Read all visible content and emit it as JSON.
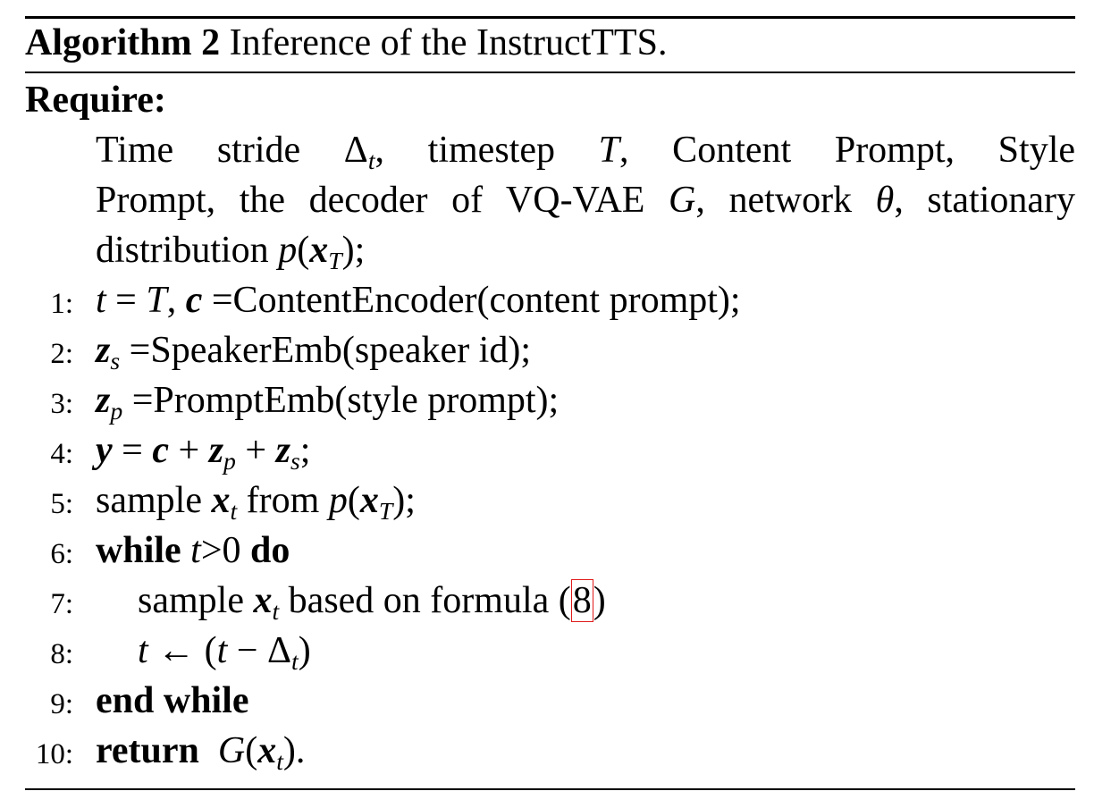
{
  "algorithm": {
    "label": "Algorithm 2",
    "caption": "Inference of the InstructTTS.",
    "require_label": "Require:",
    "require_lines": [
      [
        "Time",
        "stride",
        "Δ",
        "t",
        ",",
        "timestep",
        "T",
        ",",
        "Content",
        "Prompt,",
        "Style"
      ],
      [
        "Prompt,",
        "the",
        "decoder",
        "of",
        "VQ-VAE",
        "G",
        ",",
        "network",
        "θ",
        ",",
        "stationary"
      ],
      [
        "distribution",
        "p",
        "(",
        "x",
        "T",
        ");"
      ]
    ],
    "steps": [
      {
        "num": "1:",
        "text": "t = T, c =ContentEncoder(content prompt);"
      },
      {
        "num": "2:",
        "text": "z s =SpeakerEmb(speaker id);"
      },
      {
        "num": "3:",
        "text": "z p =PromptEmb(style prompt);"
      },
      {
        "num": "4:",
        "text": "y = c + z p + z s;"
      },
      {
        "num": "5:",
        "text": "sample x t from p(x T);"
      },
      {
        "num": "6:",
        "text": "while t>0 do"
      },
      {
        "num": "7:",
        "text": "sample x t based on formula (8)"
      },
      {
        "num": "8:",
        "text": "t ← (t − Δ t)"
      },
      {
        "num": "9:",
        "text": "end while"
      },
      {
        "num": "10:",
        "text": "return G(x t)."
      }
    ],
    "formula_ref": "8"
  }
}
